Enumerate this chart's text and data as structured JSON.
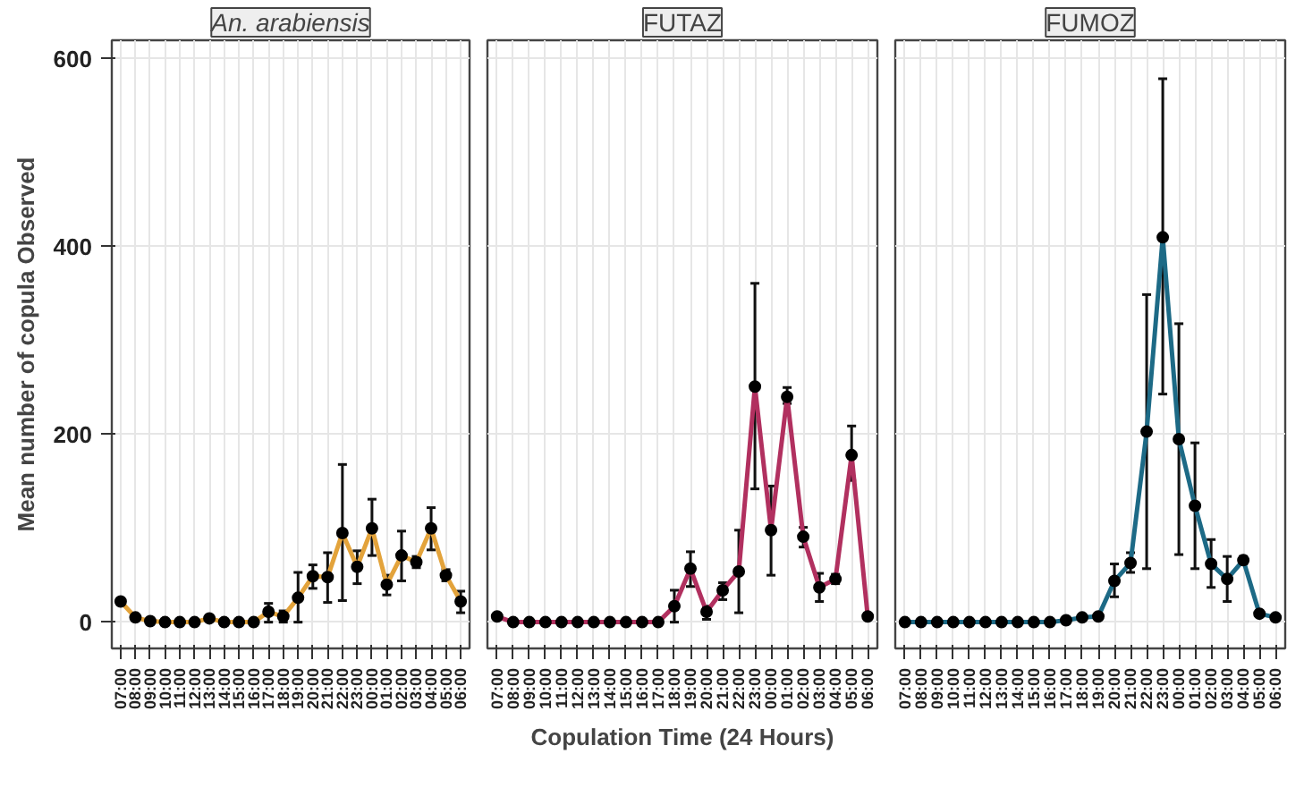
{
  "chart_data": [
    {
      "type": "line",
      "title": "An. arabiensis",
      "ylabel": "Mean number of copula Observed",
      "categories": [
        "07:00",
        "08:00",
        "09:00",
        "10:00",
        "11:00",
        "12:00",
        "13:00",
        "14:00",
        "15:00",
        "16:00",
        "17:00",
        "18:00",
        "19:00",
        "20:00",
        "21:00",
        "22:00",
        "23:00",
        "00:00",
        "01:00",
        "02:00",
        "03:00",
        "04:00",
        "05:00",
        "06:00"
      ],
      "ylim": [
        -28,
        620
      ],
      "yticks": [
        0,
        200,
        400,
        600
      ],
      "grid": true,
      "marker": "circle",
      "line_style": "solid",
      "series": [
        {
          "color": "#e3a33b",
          "values": [
            22,
            5,
            1,
            0,
            0,
            0,
            4,
            0,
            0,
            0,
            11,
            6,
            26,
            49,
            48,
            95,
            59,
            100,
            40,
            71,
            64,
            100,
            50,
            22
          ],
          "errors": [
            null,
            null,
            null,
            null,
            null,
            null,
            null,
            null,
            null,
            null,
            [
              0,
              20
            ],
            [
              0,
              12
            ],
            [
              0,
              53
            ],
            [
              36,
              61
            ],
            [
              21,
              74
            ],
            [
              23,
              168
            ],
            [
              41,
              76
            ],
            [
              71,
              131
            ],
            [
              29,
              50
            ],
            [
              44,
              97
            ],
            [
              58,
              70
            ],
            [
              77,
              122
            ],
            [
              44,
              56
            ],
            [
              10,
              33
            ]
          ]
        }
      ]
    },
    {
      "type": "line",
      "title": "FUTAZ",
      "xlabel": "Copulation Time (24 Hours)",
      "categories": [
        "07:00",
        "08:00",
        "09:00",
        "10:00",
        "11:00",
        "12:00",
        "13:00",
        "14:00",
        "15:00",
        "16:00",
        "17:00",
        "18:00",
        "19:00",
        "20:00",
        "21:00",
        "22:00",
        "23:00",
        "00:00",
        "01:00",
        "02:00",
        "03:00",
        "04:00",
        "05:00",
        "06:00"
      ],
      "ylim": [
        -28,
        620
      ],
      "yticks": [
        0,
        200,
        400,
        600
      ],
      "tick_labels": "x",
      "grid": true,
      "marker": "circle",
      "line_style": "solid",
      "series": [
        {
          "color": "#b1305f",
          "values": [
            6,
            0,
            0,
            0,
            0,
            0,
            0,
            0,
            0,
            0,
            0,
            17,
            57,
            11,
            34,
            54,
            251,
            98,
            240,
            91,
            37,
            46,
            178,
            6
          ],
          "errors": [
            null,
            null,
            null,
            null,
            null,
            null,
            null,
            null,
            null,
            null,
            null,
            [
              0,
              34
            ],
            [
              38,
              75
            ],
            [
              3,
              17
            ],
            [
              24,
              42
            ],
            [
              10,
              98
            ],
            [
              142,
              361
            ],
            [
              50,
              145
            ],
            [
              233,
              250
            ],
            [
              80,
              101
            ],
            [
              22,
              52
            ],
            [
              41,
              51
            ],
            [
              151,
              209
            ],
            null
          ]
        }
      ]
    },
    {
      "type": "line",
      "title": "FUMOZ",
      "categories": [
        "07:00",
        "08:00",
        "09:00",
        "10:00",
        "11:00",
        "12:00",
        "13:00",
        "14:00",
        "15:00",
        "16:00",
        "17:00",
        "18:00",
        "19:00",
        "20:00",
        "21:00",
        "22:00",
        "23:00",
        "00:00",
        "01:00",
        "02:00",
        "03:00",
        "04:00",
        "05:00",
        "06:00"
      ],
      "ylim": [
        -28,
        620
      ],
      "yticks": [
        0,
        200,
        400,
        600
      ],
      "tick_labels": "x",
      "grid": true,
      "marker": "circle",
      "line_style": "solid",
      "series": [
        {
          "color": "#1d6a86",
          "values": [
            0,
            0,
            0,
            0,
            0,
            0,
            0,
            0,
            0,
            0,
            2,
            5,
            6,
            44,
            63,
            203,
            410,
            195,
            124,
            62,
            46,
            66,
            9,
            5
          ],
          "errors": [
            null,
            null,
            null,
            null,
            null,
            null,
            null,
            null,
            null,
            null,
            null,
            null,
            null,
            [
              27,
              62
            ],
            [
              53,
              74
            ],
            [
              57,
              349
            ],
            [
              243,
              579
            ],
            [
              72,
              318
            ],
            [
              57,
              191
            ],
            [
              37,
              88
            ],
            [
              22,
              70
            ],
            [
              62,
              70
            ],
            null,
            null
          ]
        }
      ]
    }
  ]
}
